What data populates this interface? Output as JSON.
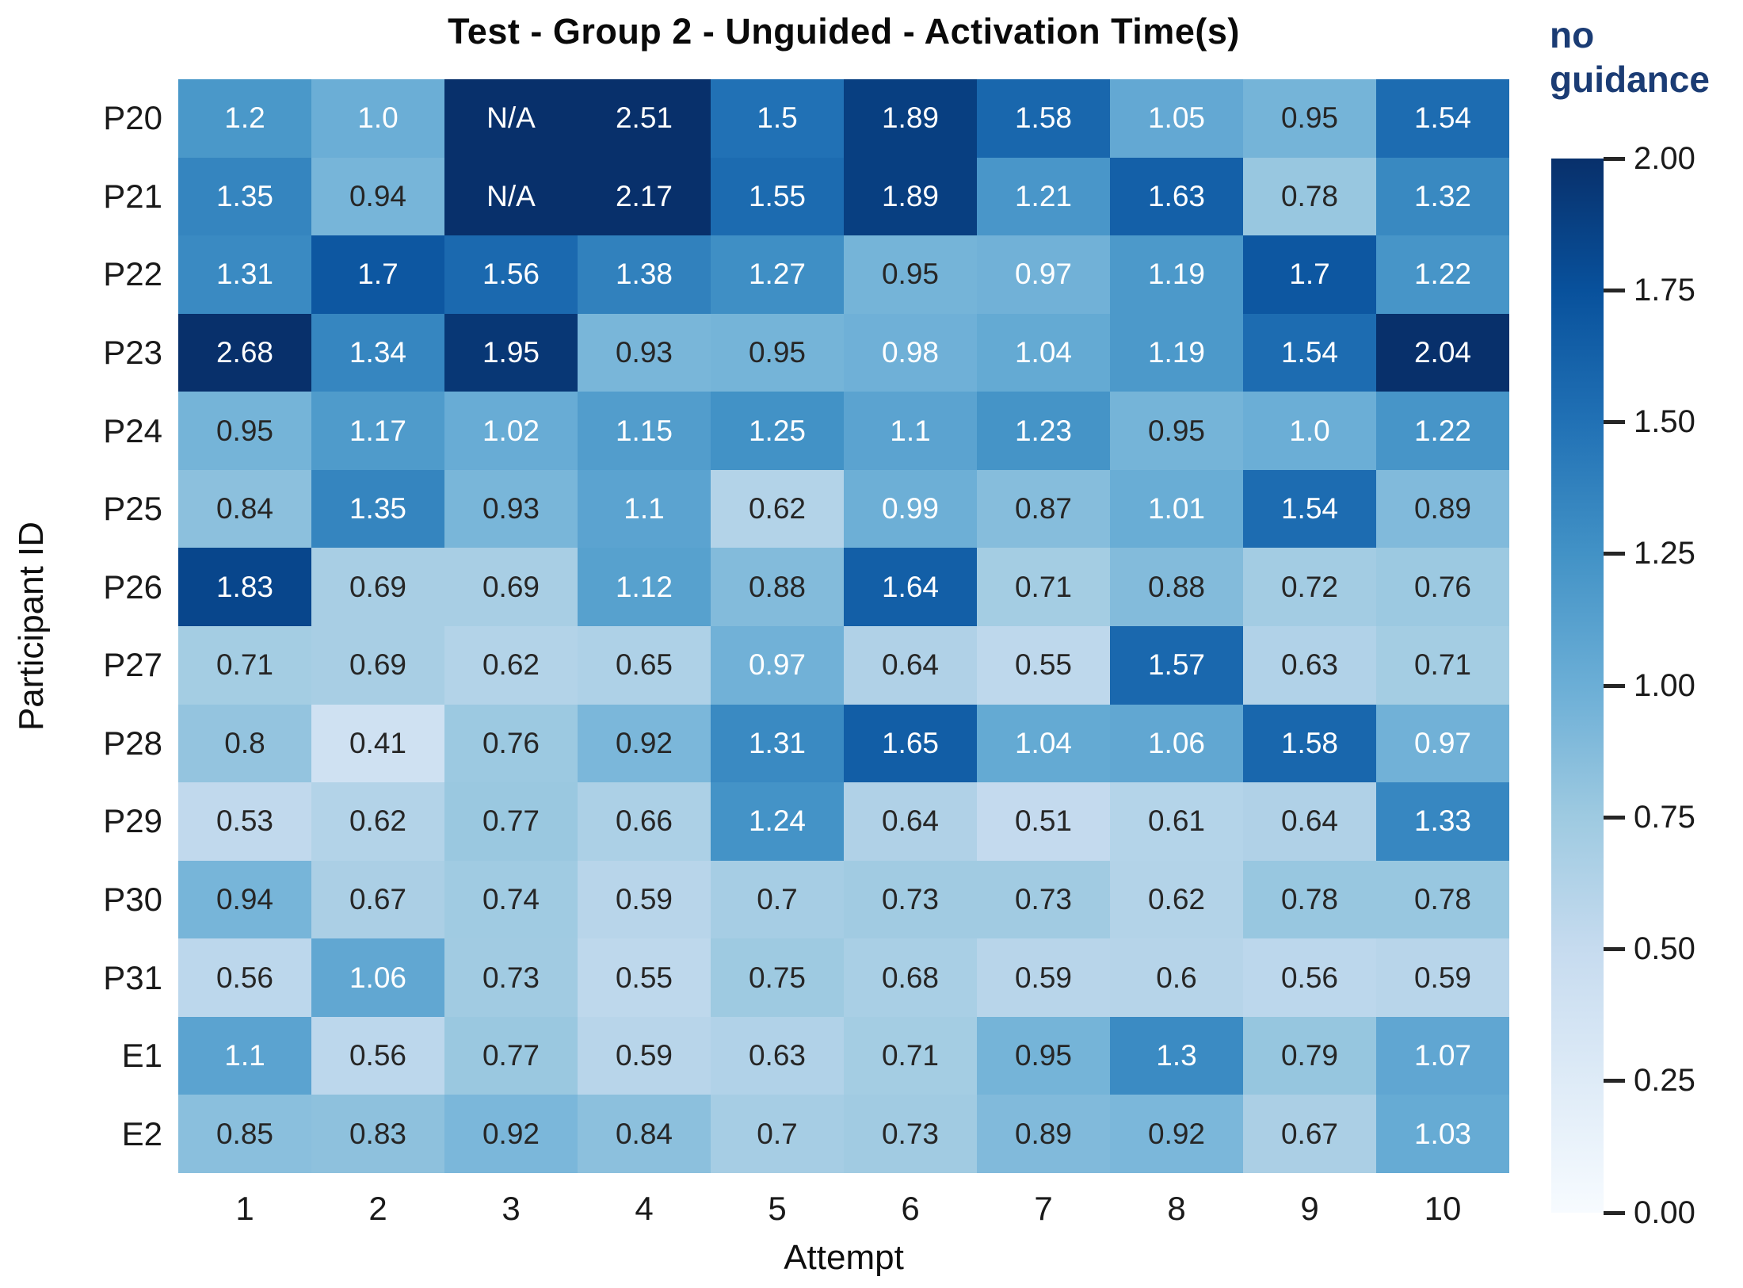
{
  "chart_data": {
    "type": "heatmap",
    "title": "Test - Group 2 - Unguided - Activation Time(s)",
    "xlabel": "Attempt",
    "ylabel": "Participant ID",
    "x_tick_labels": [
      "1",
      "2",
      "3",
      "4",
      "5",
      "6",
      "7",
      "8",
      "9",
      "10"
    ],
    "y_tick_labels": [
      "P20",
      "P21",
      "P22",
      "P23",
      "P24",
      "P25",
      "P26",
      "P27",
      "P28",
      "P29",
      "P30",
      "P31",
      "E1",
      "E2"
    ],
    "cell_values": [
      [
        "1.2",
        "1.0",
        "N/A",
        "2.51",
        "1.5",
        "1.89",
        "1.58",
        "1.05",
        "0.95",
        "1.54"
      ],
      [
        "1.35",
        "0.94",
        "N/A",
        "2.17",
        "1.55",
        "1.89",
        "1.21",
        "1.63",
        "0.78",
        "1.32"
      ],
      [
        "1.31",
        "1.7",
        "1.56",
        "1.38",
        "1.27",
        "0.95",
        "0.97",
        "1.19",
        "1.7",
        "1.22"
      ],
      [
        "2.68",
        "1.34",
        "1.95",
        "0.93",
        "0.95",
        "0.98",
        "1.04",
        "1.19",
        "1.54",
        "2.04"
      ],
      [
        "0.95",
        "1.17",
        "1.02",
        "1.15",
        "1.25",
        "1.1",
        "1.23",
        "0.95",
        "1.0",
        "1.22"
      ],
      [
        "0.84",
        "1.35",
        "0.93",
        "1.1",
        "0.62",
        "0.99",
        "0.87",
        "1.01",
        "1.54",
        "0.89"
      ],
      [
        "1.83",
        "0.69",
        "0.69",
        "1.12",
        "0.88",
        "1.64",
        "0.71",
        "0.88",
        "0.72",
        "0.76"
      ],
      [
        "0.71",
        "0.69",
        "0.62",
        "0.65",
        "0.97",
        "0.64",
        "0.55",
        "1.57",
        "0.63",
        "0.71"
      ],
      [
        "0.8",
        "0.41",
        "0.76",
        "0.92",
        "1.31",
        "1.65",
        "1.04",
        "1.06",
        "1.58",
        "0.97"
      ],
      [
        "0.53",
        "0.62",
        "0.77",
        "0.66",
        "1.24",
        "0.64",
        "0.51",
        "0.61",
        "0.64",
        "1.33"
      ],
      [
        "0.94",
        "0.67",
        "0.74",
        "0.59",
        "0.7",
        "0.73",
        "0.73",
        "0.62",
        "0.78",
        "0.78"
      ],
      [
        "0.56",
        "1.06",
        "0.73",
        "0.55",
        "0.75",
        "0.68",
        "0.59",
        "0.6",
        "0.56",
        "0.59"
      ],
      [
        "1.1",
        "0.56",
        "0.77",
        "0.59",
        "0.63",
        "0.71",
        "0.95",
        "1.3",
        "0.79",
        "1.07"
      ],
      [
        "0.85",
        "0.83",
        "0.92",
        "0.84",
        "0.7",
        "0.73",
        "0.89",
        "0.92",
        "0.67",
        "1.03"
      ]
    ],
    "missing_value_label": "N/A",
    "colormap": "Blues",
    "vmin": 0.0,
    "vmax": 2.0,
    "colorbar": {
      "title": "no\nguidance",
      "title_color": "#1b3c74",
      "tick_labels": [
        "2.00",
        "1.75",
        "1.50",
        "1.25",
        "1.00",
        "0.75",
        "0.50",
        "0.25",
        "0.00"
      ]
    },
    "colors": {
      "annot_light": "#ffffff",
      "annot_dark": "#262626",
      "cmap_stops": [
        "#f7fbff",
        "#deebf7",
        "#c6dbef",
        "#9ecae1",
        "#6baed6",
        "#4292c6",
        "#2171b5",
        "#08519c",
        "#08306b"
      ]
    }
  }
}
